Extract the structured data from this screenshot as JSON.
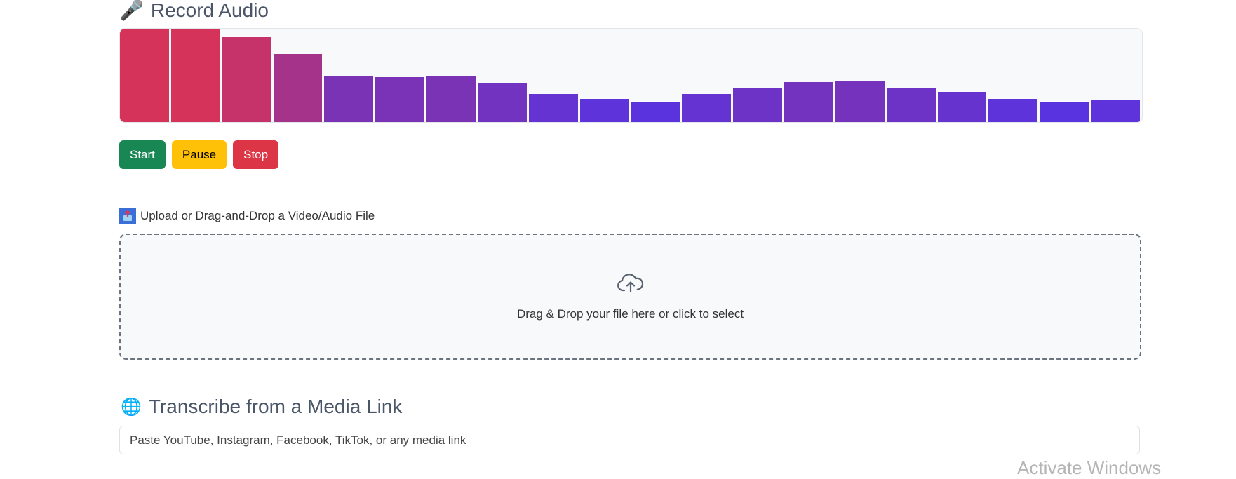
{
  "record": {
    "title": "Record Audio",
    "icon": "microphone-icon",
    "visualizer_levels": [
      1.0,
      1.0,
      0.91,
      0.73,
      0.49,
      0.48,
      0.49,
      0.41,
      0.3,
      0.25,
      0.22,
      0.3,
      0.37,
      0.43,
      0.44,
      0.37,
      0.32,
      0.25,
      0.21,
      0.24
    ],
    "colors": {
      "high": "#d6335a",
      "mid": "#7b33b5",
      "low": "#5a33e0"
    },
    "buttons": {
      "start": "Start",
      "pause": "Pause",
      "stop": "Stop"
    }
  },
  "upload": {
    "label": "Upload or Drag-and-Drop a Video/Audio File",
    "dropzone_text": "Drag & Drop your file here or click to select"
  },
  "link": {
    "title": "Transcribe from a Media Link",
    "icon": "globe-icon",
    "placeholder": "Paste YouTube, Instagram, Facebook, TikTok, or any media link"
  },
  "watermark": "Activate Windows"
}
